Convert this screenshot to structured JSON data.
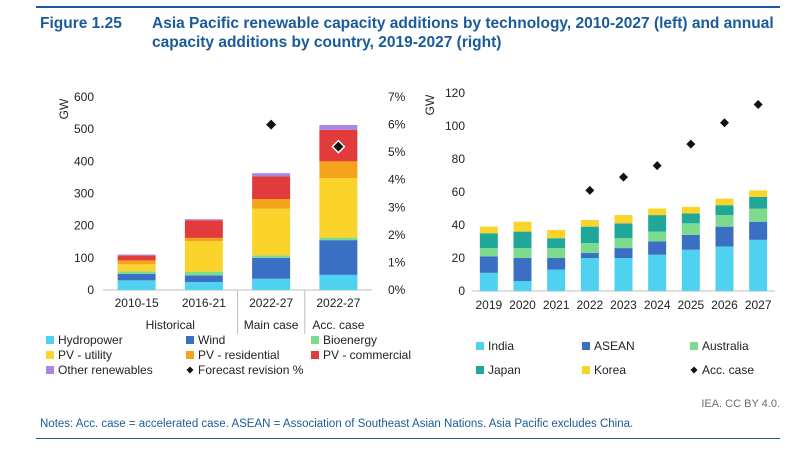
{
  "figure": {
    "number": "Figure 1.25",
    "title": "Asia Pacific renewable capacity additions by technology, 2010-2027 (left) and annual capacity additions by country, 2019-2027 (right)",
    "source": "IEA. CC BY 4.0.",
    "notes": "Notes: Acc. case = accelerated case. ASEAN = Association of Southeast Asian Nations. Asia Pacific excludes China."
  },
  "colors": {
    "hydropower": "#4fd2f0",
    "wind": "#3a6fc4",
    "bioenergy": "#7ddb8e",
    "pv_utility": "#fad42b",
    "pv_residential": "#f5a31c",
    "pv_commercial": "#e23b3b",
    "other": "#a885e6",
    "india": "#4fd2f0",
    "asean": "#3a6fc4",
    "australia": "#7ddb8e",
    "japan": "#1fa89a",
    "korea": "#fad42b",
    "marker": "#111111",
    "axis": "#bfbfbf"
  },
  "chart_data": [
    {
      "type": "bar",
      "stacked": true,
      "ylabel": "GW",
      "ylim": [
        0,
        600
      ],
      "yticks": [
        "0",
        "100",
        "200",
        "300",
        "400",
        "500",
        "600"
      ],
      "y2lim": [
        0,
        7
      ],
      "y2ticks": [
        "0%",
        "1%",
        "2%",
        "3%",
        "4%",
        "5%",
        "6%",
        "7%"
      ],
      "categories": [
        "2010-15",
        "2016-21",
        "2022-27",
        "2022-27"
      ],
      "groups": [
        {
          "label": "Historical",
          "span": 2
        },
        {
          "label": "Main case",
          "span": 1
        },
        {
          "label": "Acc. case",
          "span": 1
        }
      ],
      "series": [
        {
          "name": "Hydropower",
          "key": "hydropower",
          "values": [
            30,
            25,
            35,
            47
          ]
        },
        {
          "name": "Wind",
          "key": "wind",
          "values": [
            20,
            20,
            65,
            108
          ]
        },
        {
          "name": "Bioenergy",
          "key": "bioenergy",
          "values": [
            8,
            12,
            8,
            8
          ]
        },
        {
          "name": "PV - utility",
          "key": "pv_utility",
          "values": [
            22,
            95,
            145,
            185
          ]
        },
        {
          "name": "PV - residential",
          "key": "pv_residential",
          "values": [
            12,
            10,
            30,
            52
          ]
        },
        {
          "name": "PV - commercial",
          "key": "pv_commercial",
          "values": [
            15,
            55,
            70,
            98
          ]
        },
        {
          "name": "Other renewables",
          "key": "other",
          "values": [
            3,
            3,
            10,
            15
          ]
        }
      ],
      "marker_series": {
        "name": "Forecast revision %",
        "values": [
          null,
          null,
          6.0,
          5.2
        ]
      },
      "legend_position": "bottom"
    },
    {
      "type": "bar",
      "stacked": true,
      "ylabel": "GW",
      "ylim": [
        0,
        120
      ],
      "yticks": [
        "0",
        "20",
        "40",
        "60",
        "80",
        "100",
        "120"
      ],
      "categories": [
        "2019",
        "2020",
        "2021",
        "2022",
        "2023",
        "2024",
        "2025",
        "2026",
        "2027"
      ],
      "series": [
        {
          "name": "India",
          "key": "india",
          "values": [
            11,
            6,
            13,
            20,
            20,
            22,
            25,
            27,
            31
          ]
        },
        {
          "name": "ASEAN",
          "key": "asean",
          "values": [
            10,
            14,
            7,
            3,
            6,
            8,
            9,
            12,
            11
          ]
        },
        {
          "name": "Australia",
          "key": "australia",
          "values": [
            5,
            6,
            6,
            6,
            6,
            6,
            7,
            7,
            8
          ]
        },
        {
          "name": "Japan",
          "key": "japan",
          "values": [
            9,
            10,
            6,
            10,
            9,
            10,
            6,
            6,
            7
          ]
        },
        {
          "name": "Korea",
          "key": "korea",
          "values": [
            4,
            6,
            5,
            4,
            5,
            4,
            4,
            4,
            4
          ]
        }
      ],
      "marker_series": {
        "name": "Acc. case",
        "values": [
          null,
          null,
          null,
          61,
          69,
          76,
          89,
          102,
          113
        ]
      },
      "legend_position": "bottom"
    }
  ]
}
